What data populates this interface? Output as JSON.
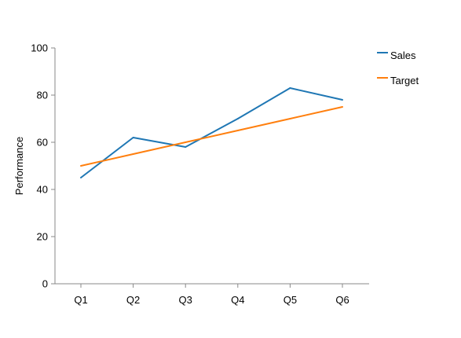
{
  "chart_data": {
    "type": "line",
    "title": "",
    "xlabel": "",
    "ylabel": "Performance",
    "categories": [
      "Q1",
      "Q2",
      "Q3",
      "Q4",
      "Q5",
      "Q6"
    ],
    "ylim": [
      0,
      100
    ],
    "yticks": [
      0,
      20,
      40,
      60,
      80,
      100
    ],
    "grid": false,
    "legend_position": "top-right",
    "series": [
      {
        "name": "Sales",
        "color": "#1f77b4",
        "values": [
          45,
          62,
          58,
          70,
          83,
          78
        ]
      },
      {
        "name": "Target",
        "color": "#ff7f0e",
        "values": [
          50,
          55,
          60,
          65,
          70,
          75
        ]
      }
    ]
  }
}
